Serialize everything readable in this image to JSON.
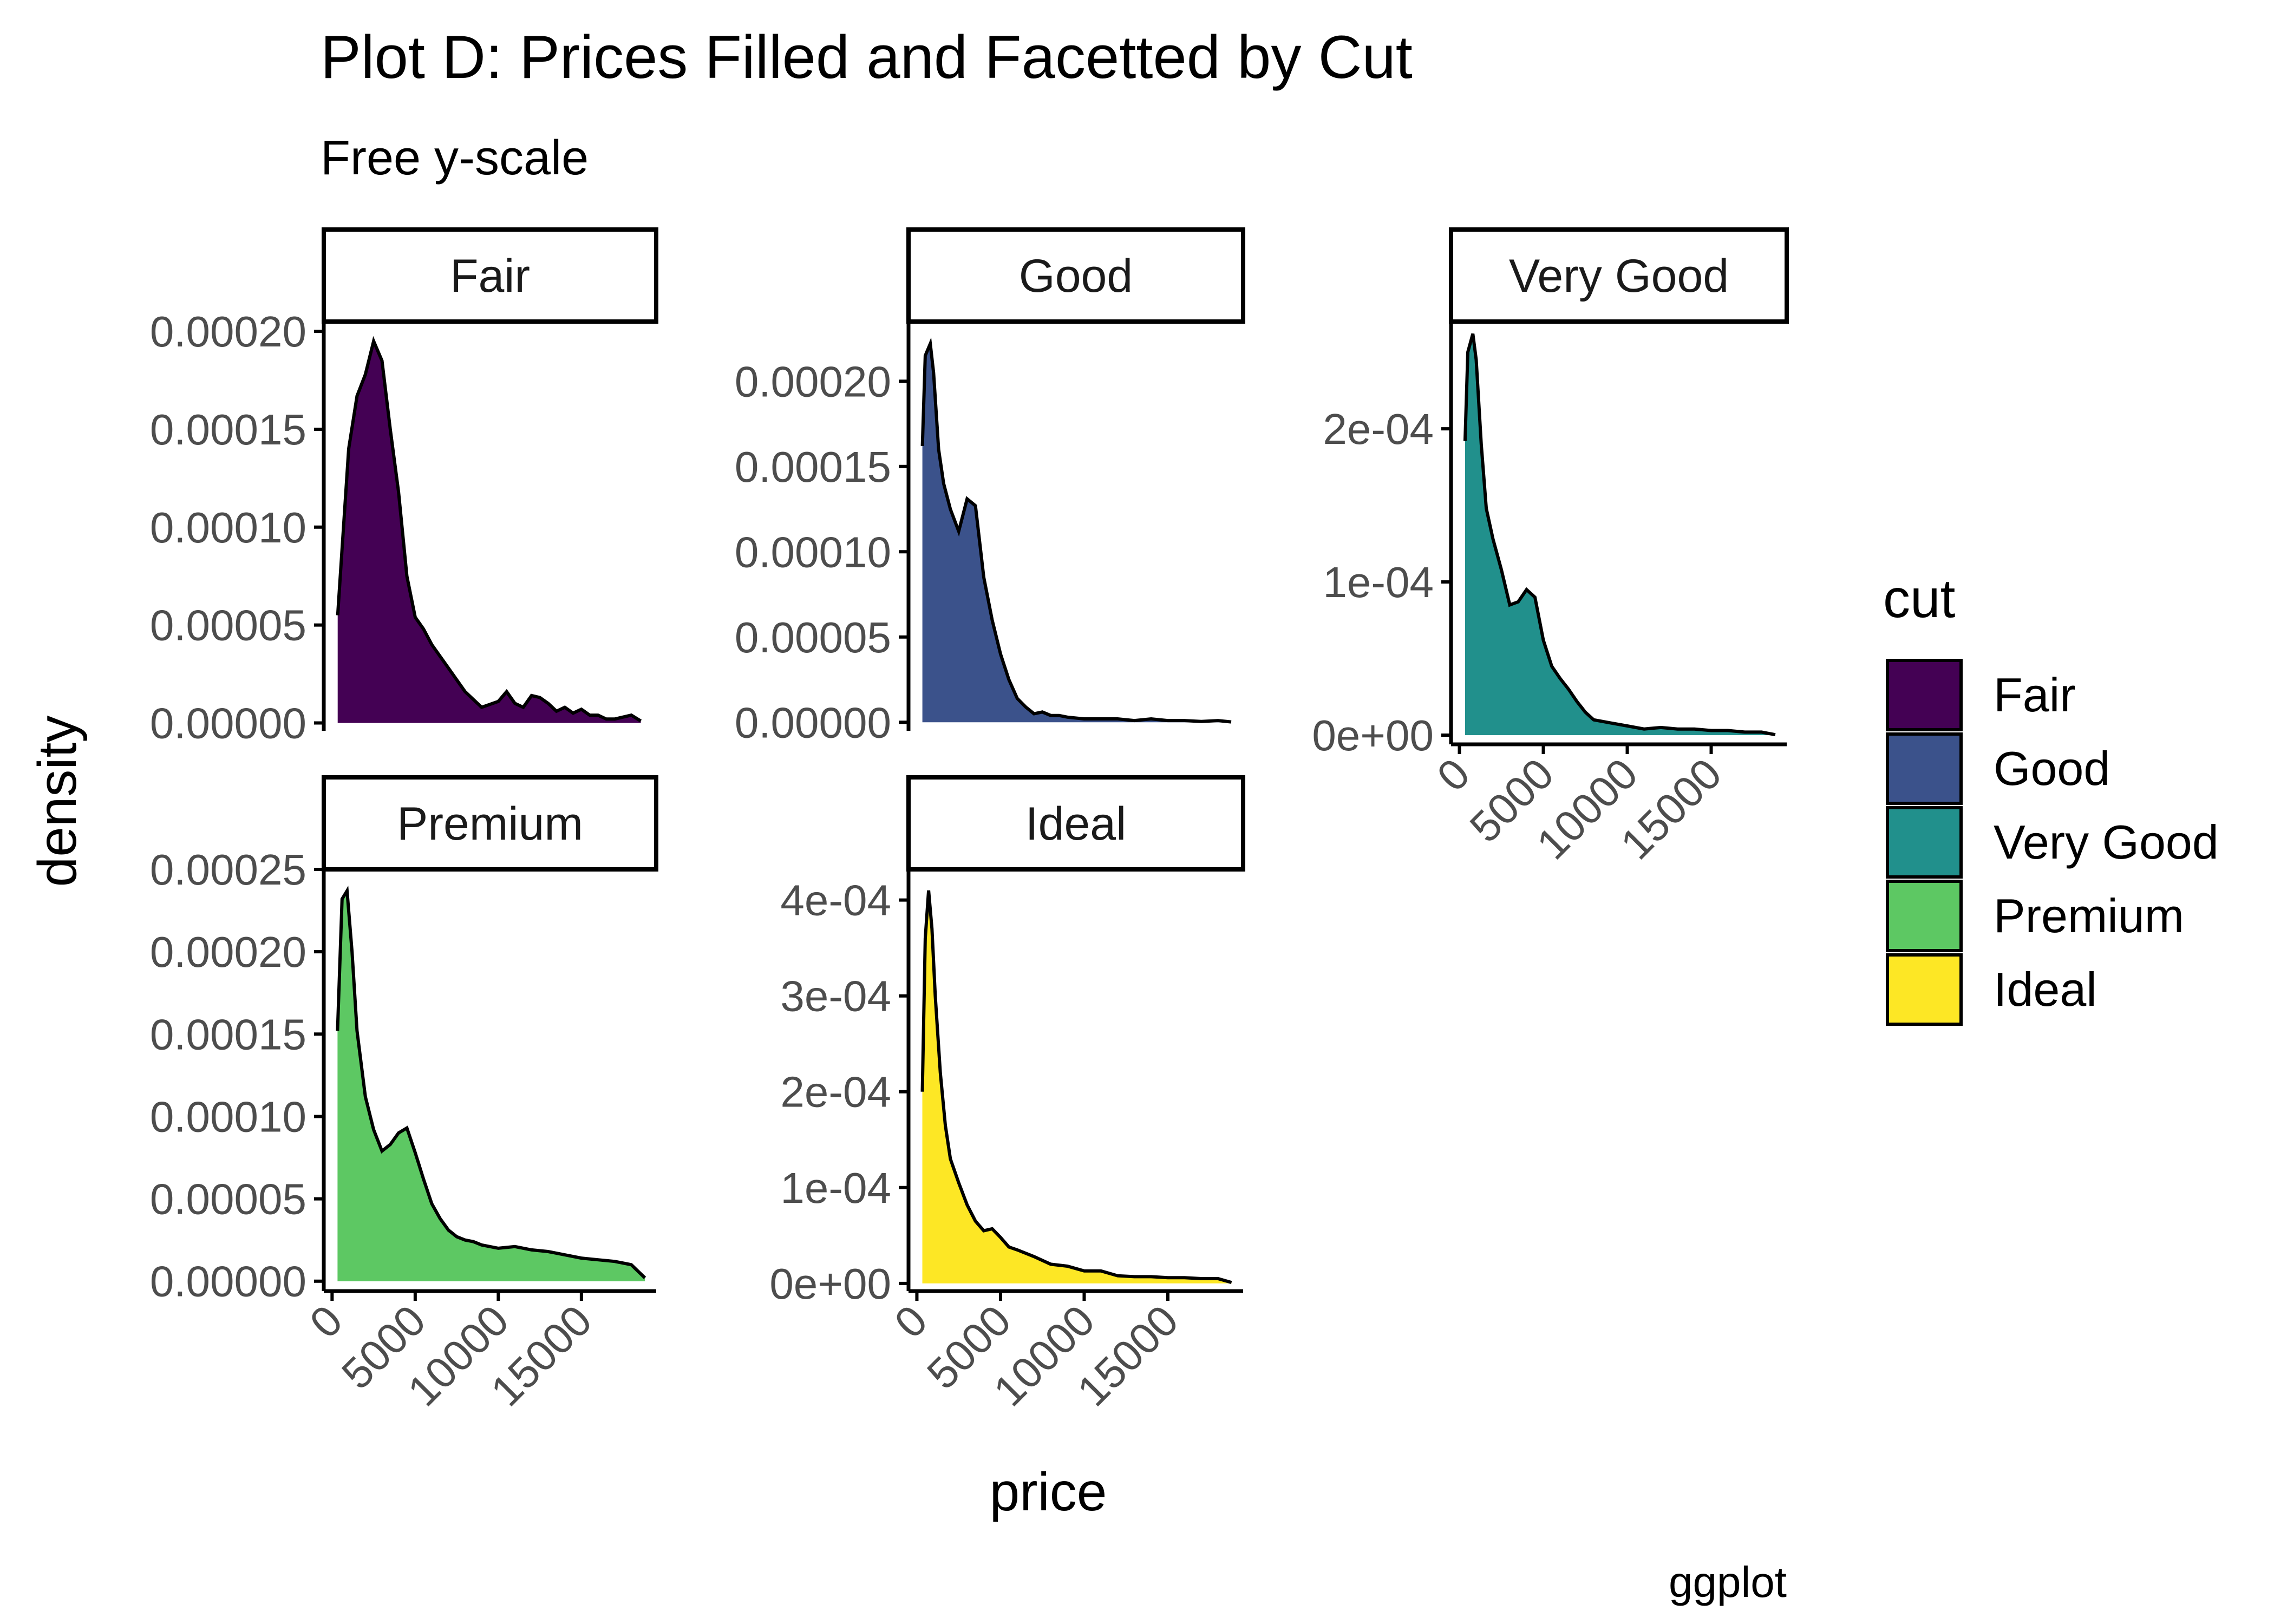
{
  "chart_data": {
    "type": "area",
    "title": "Plot D: Prices Filled and Facetted by Cut",
    "subtitle": "Free y-scale",
    "xlabel": "price",
    "ylabel": "density",
    "caption": "ggplot",
    "legend": {
      "title": "cut",
      "placement": "right",
      "items": [
        {
          "label": "Fair",
          "color": "#440154"
        },
        {
          "label": "Good",
          "color": "#3B528B"
        },
        {
          "label": "Very Good",
          "color": "#21908C"
        },
        {
          "label": "Premium",
          "color": "#5DC863"
        },
        {
          "label": "Ideal",
          "color": "#FDE725"
        }
      ]
    },
    "x_ticks": [
      0,
      5000,
      10000,
      15000
    ],
    "x_tick_labels": [
      "0",
      "5000",
      "10000",
      "15000"
    ],
    "xlim": [
      -500,
      19500
    ],
    "grid": false,
    "facets": [
      {
        "name": "Fair",
        "color": "#440154",
        "ylim": [
          -4e-06,
          0.000205
        ],
        "y_ticks": [
          0,
          5e-05,
          0.0001,
          0.00015,
          0.0002
        ],
        "y_tick_labels": [
          "0.00000",
          "0.00005",
          "0.00010",
          "0.00015",
          "0.00020"
        ],
        "x": [
          337,
          1000,
          1500,
          2000,
          2500,
          3000,
          3500,
          4000,
          4500,
          5000,
          5500,
          6000,
          7000,
          8000,
          9000,
          10000,
          10500,
          11000,
          11500,
          12000,
          12500,
          13000,
          13500,
          14000,
          14500,
          15000,
          15500,
          16000,
          16500,
          17000,
          17500,
          18000,
          18574
        ],
        "y": [
          5.5e-05,
          0.00014,
          0.000167,
          0.000178,
          0.000195,
          0.000185,
          0.00015,
          0.000118,
          7.5e-05,
          5.4e-05,
          4.8e-05,
          4e-05,
          2.8e-05,
          1.6e-05,
          8e-06,
          1.1e-05,
          1.6e-05,
          1e-05,
          8e-06,
          1.4e-05,
          1.3e-05,
          1e-05,
          6e-06,
          8e-06,
          5e-06,
          7e-06,
          4e-06,
          4e-06,
          2e-06,
          2e-06,
          3e-06,
          4e-06,
          1e-06
        ]
      },
      {
        "name": "Good",
        "color": "#3B528B",
        "ylim": [
          -5e-06,
          0.000235
        ],
        "y_ticks": [
          0,
          5e-05,
          0.0001,
          0.00015,
          0.0002
        ],
        "y_tick_labels": [
          "0.00000",
          "0.00005",
          "0.00010",
          "0.00015",
          "0.00020"
        ],
        "x": [
          327,
          500,
          800,
          1000,
          1300,
          1600,
          2000,
          2500,
          3000,
          3500,
          4000,
          4500,
          5000,
          5500,
          6000,
          6500,
          7000,
          7500,
          8000,
          8500,
          9000,
          10000,
          11000,
          12000,
          13000,
          14000,
          15000,
          16000,
          17000,
          18000,
          18788
        ],
        "y": [
          0.000162,
          0.000215,
          0.000222,
          0.000205,
          0.00016,
          0.00014,
          0.000125,
          0.000112,
          0.000131,
          0.000127,
          8.5e-05,
          6e-05,
          4e-05,
          2.5e-05,
          1.4e-05,
          9e-06,
          5e-06,
          6e-06,
          4e-06,
          4e-06,
          3e-06,
          2e-06,
          2e-06,
          2e-06,
          1e-06,
          2e-06,
          1e-06,
          1e-06,
          5e-07,
          1e-06,
          2e-07
        ]
      },
      {
        "name": "Very Good",
        "color": "#21908C",
        "ylim": [
          -6e-06,
          0.00027
        ],
        "y_ticks": [
          0,
          0.0001,
          0.0002
        ],
        "y_tick_labels": [
          "0e+00",
          "1e-04",
          "2e-04"
        ],
        "x": [
          336,
          500,
          800,
          1000,
          1300,
          1600,
          2000,
          2500,
          3000,
          3500,
          4000,
          4500,
          5000,
          5500,
          6000,
          6500,
          7000,
          7500,
          8000,
          9000,
          10000,
          11000,
          12000,
          13000,
          14000,
          15000,
          16000,
          17000,
          18000,
          18818
        ],
        "y": [
          0.000192,
          0.00025,
          0.000262,
          0.000245,
          0.00019,
          0.000148,
          0.000128,
          0.000108,
          8.5e-05,
          8.7e-05,
          9.5e-05,
          9e-05,
          6.2e-05,
          4.5e-05,
          3.7e-05,
          3e-05,
          2.2e-05,
          1.5e-05,
          1e-05,
          8e-06,
          6e-06,
          4e-06,
          5e-06,
          4e-06,
          4e-06,
          3e-06,
          3e-06,
          2e-06,
          2e-06,
          3e-07
        ]
      },
      {
        "name": "Premium",
        "color": "#5DC863",
        "ylim": [
          -6e-06,
          0.00025
        ],
        "y_ticks": [
          0,
          5e-05,
          0.0001,
          0.00015,
          0.0002,
          0.00025
        ],
        "y_tick_labels": [
          "0.00000",
          "0.00005",
          "0.00010",
          "0.00015",
          "0.00020",
          "0.00025"
        ],
        "x": [
          326,
          600,
          900,
          1200,
          1500,
          2000,
          2500,
          3000,
          3500,
          4000,
          4500,
          5000,
          5500,
          6000,
          6500,
          7000,
          7500,
          8000,
          8500,
          9000,
          10000,
          11000,
          12000,
          13000,
          14000,
          15000,
          16000,
          17000,
          18000,
          18823
        ],
        "y": [
          0.000152,
          0.000232,
          0.000237,
          0.0002,
          0.000152,
          0.000112,
          9.2e-05,
          7.9e-05,
          8.3e-05,
          9e-05,
          9.3e-05,
          7.8e-05,
          6.2e-05,
          4.7e-05,
          3.8e-05,
          3.1e-05,
          2.7e-05,
          2.5e-05,
          2.4e-05,
          2.2e-05,
          2e-05,
          2.1e-05,
          1.9e-05,
          1.8e-05,
          1.6e-05,
          1.4e-05,
          1.3e-05,
          1.2e-05,
          1e-05,
          2e-06
        ]
      },
      {
        "name": "Ideal",
        "color": "#FDE725",
        "ylim": [
          -8e-06,
          0.000432
        ],
        "y_ticks": [
          0,
          0.0001,
          0.0002,
          0.0003,
          0.0004
        ],
        "y_tick_labels": [
          "0e+00",
          "1e-04",
          "2e-04",
          "3e-04",
          "4e-04"
        ],
        "x": [
          326,
          500,
          700,
          900,
          1100,
          1400,
          1700,
          2000,
          2500,
          3000,
          3500,
          4000,
          4500,
          5000,
          5500,
          6000,
          7000,
          8000,
          9000,
          10000,
          11000,
          12000,
          13000,
          14000,
          15000,
          16000,
          17000,
          18000,
          18806
        ],
        "y": [
          0.0002,
          0.00036,
          0.00041,
          0.00037,
          0.0003,
          0.00022,
          0.000165,
          0.00013,
          0.000105,
          8.2e-05,
          6.5e-05,
          5.5e-05,
          5.7e-05,
          4.8e-05,
          3.8e-05,
          3.5e-05,
          2.8e-05,
          2e-05,
          1.8e-05,
          1.3e-05,
          1.3e-05,
          8e-06,
          7e-06,
          7e-06,
          6e-06,
          6e-06,
          5e-06,
          5e-06,
          1e-06
        ]
      }
    ]
  }
}
